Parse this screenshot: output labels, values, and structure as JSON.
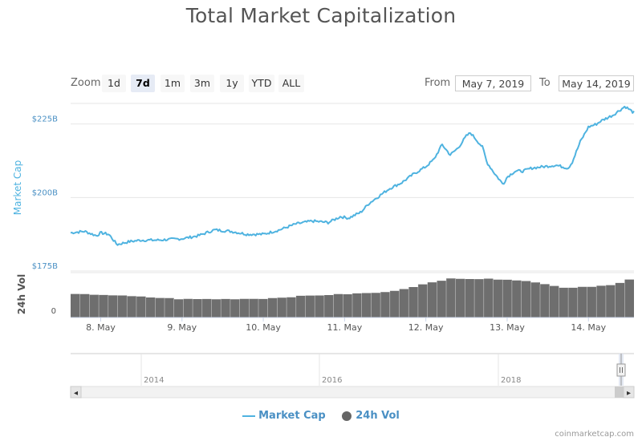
{
  "chart_data": {
    "type": "line",
    "title": "Total Market Capitalization",
    "ylabel": "Market Cap",
    "ylabel_volume": "24h Vol",
    "y_ticks": [
      "$175B",
      "$200B",
      "$225B"
    ],
    "y_tick_values": [
      175,
      200,
      225
    ],
    "volume_tick": "0",
    "ylim": [
      175,
      232
    ],
    "x_ticks": [
      "8. May",
      "9. May",
      "10. May",
      "11. May",
      "12. May",
      "13. May",
      "14. May"
    ],
    "x_tick_days": [
      8,
      9,
      10,
      11,
      12,
      13,
      14
    ],
    "xlim_days": [
      7.63,
      14.56
    ],
    "series": [
      {
        "name": "Market Cap",
        "color": "#4fb3e0",
        "unit": "billion USD",
        "x_days": [
          7.63,
          7.8,
          7.95,
          8.0,
          8.1,
          8.2,
          8.35,
          8.5,
          8.7,
          9.0,
          9.2,
          9.4,
          9.6,
          9.8,
          10.0,
          10.2,
          10.4,
          10.6,
          10.8,
          10.95,
          11.05,
          11.2,
          11.3,
          11.45,
          11.55,
          11.7,
          11.85,
          12.0,
          12.1,
          12.2,
          12.3,
          12.4,
          12.5,
          12.55,
          12.7,
          12.75,
          12.85,
          12.95,
          13.0,
          13.1,
          13.2,
          13.3,
          13.45,
          13.6,
          13.75,
          13.8,
          13.9,
          14.0,
          14.1,
          14.15,
          14.3,
          14.45,
          14.55
        ],
        "values": [
          188,
          188.5,
          187,
          188,
          187.5,
          184,
          185,
          185.5,
          185.5,
          186,
          187,
          189,
          188.5,
          187.5,
          187.5,
          189,
          191,
          192,
          191.5,
          193.5,
          193,
          195,
          198,
          201,
          203,
          205,
          208,
          210.5,
          213,
          218,
          214.5,
          217,
          221,
          222,
          217,
          212,
          208,
          204.5,
          207,
          209,
          209,
          210,
          210.5,
          211,
          210,
          212,
          219,
          224,
          225,
          226,
          228,
          231,
          229
        ]
      },
      {
        "name": "24h Vol",
        "color": "#666666",
        "unit": "relative",
        "x_days": [
          7.63,
          8.0,
          8.5,
          9.0,
          9.5,
          10.0,
          10.5,
          11.0,
          11.5,
          11.7,
          12.0,
          12.2,
          12.3,
          12.6,
          13.0,
          13.2,
          13.5,
          13.7,
          14.0,
          14.3,
          14.45,
          14.55
        ],
        "values": [
          0.52,
          0.51,
          0.46,
          0.41,
          0.41,
          0.42,
          0.48,
          0.52,
          0.56,
          0.63,
          0.75,
          0.82,
          0.88,
          0.86,
          0.85,
          0.82,
          0.74,
          0.66,
          0.69,
          0.72,
          0.8,
          0.87
        ]
      }
    ],
    "legend": "bottom-center",
    "grid": true
  },
  "zoom": {
    "label": "Zoom",
    "buttons": [
      "1d",
      "7d",
      "1m",
      "3m",
      "1y",
      "YTD",
      "ALL"
    ],
    "active": "7d"
  },
  "range": {
    "from_label": "From",
    "from_value": "May 7, 2019",
    "to_label": "To",
    "to_value": "May 14, 2019"
  },
  "navigator": {
    "year_labels": [
      "2014",
      "2016",
      "2018"
    ],
    "scroll_left_arrow": "◂",
    "scroll_right_arrow": "▸"
  },
  "legend": {
    "market_cap": "Market Cap",
    "volume": "24h Vol"
  },
  "credit": "coinmarketcap.com"
}
